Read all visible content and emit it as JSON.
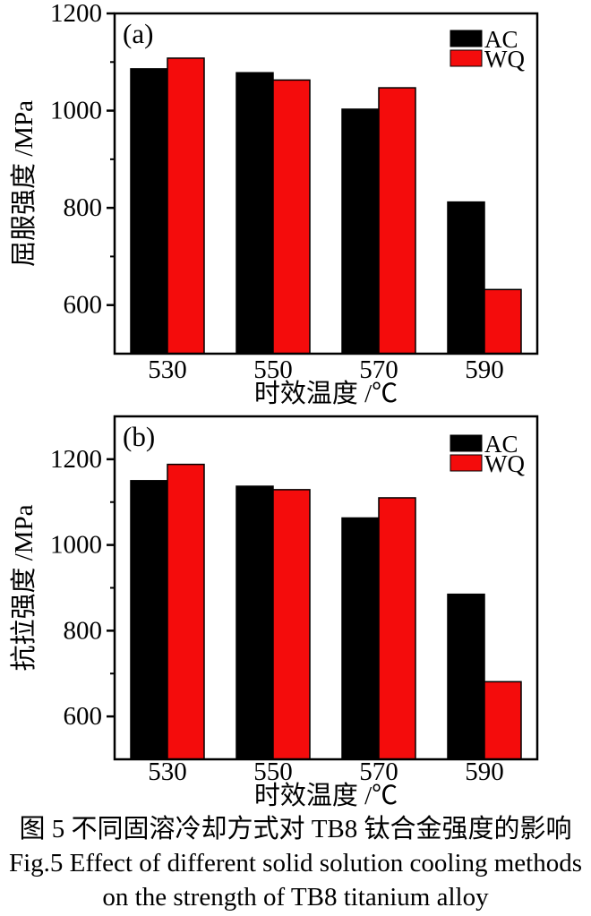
{
  "caption": {
    "line1": "图 5  不同固溶冷却方式对 TB8 钛合金强度的影响",
    "line2": "Fig.5  Effect of different solid solution cooling methods",
    "line3": "on the strength of TB8 titanium alloy"
  },
  "colors": {
    "ac_series": "#000000",
    "wq_series": "#f40c0c",
    "axis": "#000000",
    "background": "#ffffff"
  },
  "chart_data": [
    {
      "type": "bar",
      "panel_label": "(a)",
      "categories": [
        "530",
        "550",
        "570",
        "590"
      ],
      "series": [
        {
          "name": "AC",
          "color": "#000000",
          "values": [
            1086,
            1078,
            1003,
            812
          ]
        },
        {
          "name": "WQ",
          "color": "#f40c0c",
          "values": [
            1108,
            1063,
            1047,
            632
          ]
        }
      ],
      "xlabel": "时效温度 /℃",
      "ylabel": "屈服强度 /MPa",
      "ylim": [
        500,
        1200
      ],
      "yticks_major": [
        600,
        800,
        1000,
        1200
      ],
      "yticks_minor": [
        700,
        900,
        1100
      ],
      "grid": false,
      "legend_position": "top-right",
      "legend": [
        "AC",
        "WQ"
      ]
    },
    {
      "type": "bar",
      "panel_label": "(b)",
      "categories": [
        "530",
        "550",
        "570",
        "590"
      ],
      "series": [
        {
          "name": "AC",
          "color": "#000000",
          "values": [
            1150,
            1137,
            1063,
            885
          ]
        },
        {
          "name": "WQ",
          "color": "#f40c0c",
          "values": [
            1188,
            1129,
            1110,
            681
          ]
        }
      ],
      "xlabel": "时效温度 /℃",
      "ylabel": "抗拉强度 /MPa",
      "ylim": [
        500,
        1300
      ],
      "yticks_major": [
        600,
        800,
        1000,
        1200
      ],
      "yticks_minor": [
        700,
        900,
        1100
      ],
      "grid": false,
      "legend_position": "top-right",
      "legend": [
        "AC",
        "WQ"
      ]
    }
  ]
}
